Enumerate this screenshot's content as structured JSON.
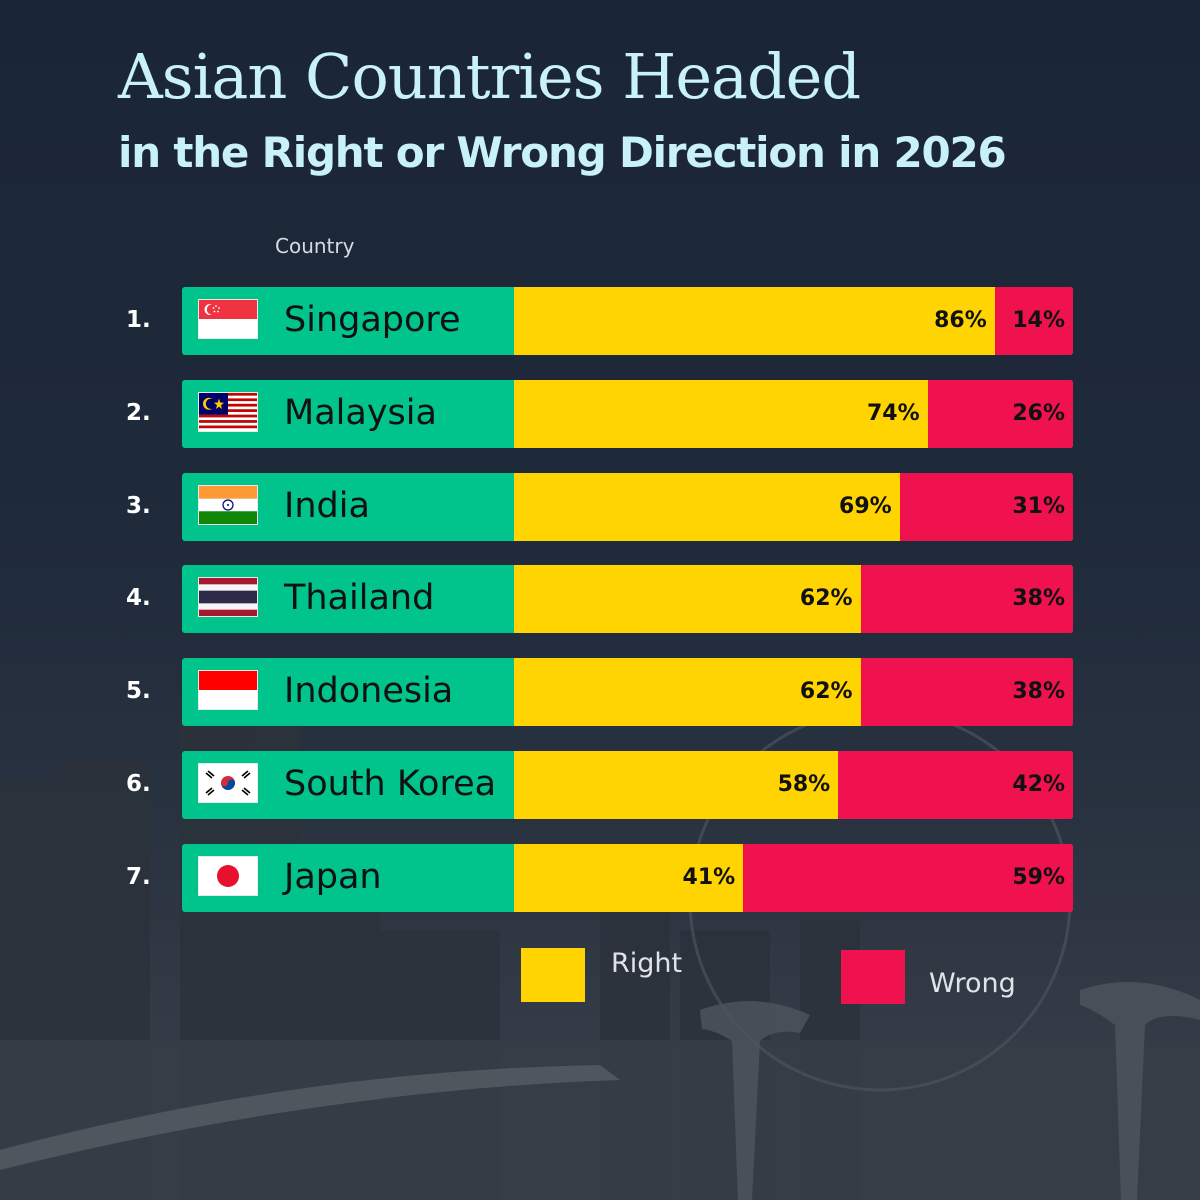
{
  "chart_data": {
    "type": "bar",
    "stacked": true,
    "orientation": "horizontal",
    "title": "Asian Countries Headed",
    "subtitle": "in the Right or Wrong Direction in 2026",
    "column_header": "Country",
    "categories": [
      "Singapore",
      "Malaysia",
      "India",
      "Thailand",
      "Indonesia",
      "South Korea",
      "Japan"
    ],
    "ranks": [
      "1.",
      "2.",
      "3.",
      "4.",
      "5.",
      "6.",
      "7."
    ],
    "flags": [
      "singapore-flag-icon",
      "malaysia-flag-icon",
      "india-flag-icon",
      "thailand-flag-icon",
      "indonesia-flag-icon",
      "south-korea-flag-icon",
      "japan-flag-icon"
    ],
    "series": [
      {
        "name": "Right",
        "color": "#ffd400",
        "values": [
          86,
          74,
          69,
          62,
          62,
          58,
          41
        ],
        "labels": [
          "86%",
          "74%",
          "69%",
          "62%",
          "62%",
          "58%",
          "41%"
        ]
      },
      {
        "name": "Wrong",
        "color": "#f0124f",
        "values": [
          14,
          26,
          31,
          38,
          38,
          42,
          59
        ],
        "labels": [
          "14%",
          "26%",
          "31%",
          "38%",
          "38%",
          "42%",
          "59%"
        ]
      }
    ],
    "xlim": [
      0,
      100
    ],
    "grid": false,
    "legend_position": "bottom"
  },
  "colors": {
    "label_panel": "#00c48b",
    "title": "#c8f1f8"
  }
}
